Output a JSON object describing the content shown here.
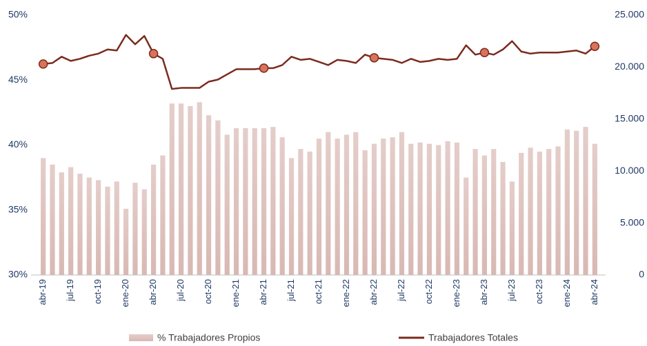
{
  "chart_data": {
    "type": "bar_line",
    "categories": [
      "abr-19",
      null,
      null,
      "jul-19",
      null,
      null,
      "oct-19",
      null,
      null,
      "ene-20",
      null,
      null,
      "abr-20",
      null,
      null,
      "jul-20",
      null,
      null,
      "oct-20",
      null,
      null,
      "ene-21",
      null,
      null,
      "abr-21",
      null,
      null,
      "jul-21",
      null,
      null,
      "oct-21",
      null,
      null,
      "ene-22",
      null,
      null,
      "abr-22",
      null,
      null,
      "jul-22",
      null,
      null,
      "oct-22",
      null,
      null,
      "ene-23",
      null,
      null,
      "abr-23",
      null,
      null,
      "jul-23",
      null,
      null,
      "oct-23",
      null,
      null,
      "ene-24",
      null,
      null,
      "abr-24"
    ],
    "series": [
      {
        "name": "% Trabajadores Propios",
        "type": "bar",
        "color": "#d9b8b3",
        "axis": "y",
        "values": [
          39.0,
          38.5,
          37.9,
          38.3,
          37.8,
          37.5,
          37.3,
          36.8,
          37.2,
          35.1,
          37.1,
          36.6,
          38.5,
          39.2,
          43.2,
          43.2,
          43.0,
          43.3,
          42.3,
          41.9,
          40.8,
          41.3,
          41.3,
          41.3,
          41.3,
          41.4,
          40.6,
          39.0,
          39.7,
          39.5,
          40.5,
          41.0,
          40.5,
          40.8,
          41.0,
          39.6,
          40.1,
          40.5,
          40.6,
          41.0,
          40.1,
          40.2,
          40.1,
          40.0,
          40.3,
          40.2,
          37.5,
          39.7,
          39.2,
          39.7,
          38.7,
          37.2,
          39.4,
          39.8,
          39.5,
          39.7,
          39.9,
          41.2,
          41.1,
          41.4,
          40.1
        ]
      },
      {
        "name": "Trabajadores Totales",
        "type": "line",
        "color": "#7b2a1e",
        "marker_color": "#d9735a",
        "axis": "y2",
        "marker_indices": [
          0,
          12,
          24,
          36,
          48,
          60
        ],
        "values": [
          20300,
          20400,
          21000,
          20600,
          20800,
          21100,
          21300,
          21700,
          21600,
          23100,
          22200,
          23000,
          21300,
          20800,
          17900,
          18000,
          18000,
          18000,
          18600,
          18800,
          19300,
          19800,
          19800,
          19800,
          19900,
          19900,
          20200,
          21000,
          20700,
          20800,
          20500,
          20200,
          20700,
          20600,
          20400,
          21200,
          20900,
          20800,
          20700,
          20400,
          20800,
          20500,
          20600,
          20800,
          20700,
          20800,
          22100,
          21200,
          21400,
          21200,
          21700,
          22500,
          21500,
          21300,
          21400,
          21400,
          21400,
          21500,
          21600,
          21300,
          22000
        ]
      }
    ],
    "ylim": [
      30,
      50
    ],
    "yticks": [
      {
        "value": 30,
        "label": "30%"
      },
      {
        "value": 35,
        "label": "35%"
      },
      {
        "value": 40,
        "label": "40%"
      },
      {
        "value": 45,
        "label": "45%"
      },
      {
        "value": 50,
        "label": "50%"
      }
    ],
    "y2lim": [
      0,
      25000
    ],
    "y2ticks": [
      0,
      {
        "value": 5000,
        "label": "5.000"
      },
      {
        "value": 10000,
        "label": "10.000"
      },
      {
        "value": 15000,
        "label": "15.000"
      },
      {
        "value": 20000,
        "label": "20.000"
      },
      {
        "value": 25000,
        "label": "25.000"
      }
    ]
  }
}
